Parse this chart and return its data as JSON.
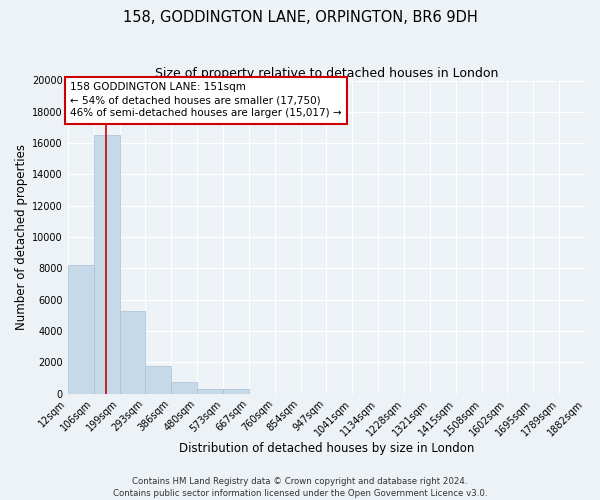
{
  "title": "158, GODDINGTON LANE, ORPINGTON, BR6 9DH",
  "subtitle": "Size of property relative to detached houses in London",
  "xlabel": "Distribution of detached houses by size in London",
  "ylabel": "Number of detached properties",
  "bar_values": [
    8200,
    16500,
    5300,
    1800,
    750,
    280,
    280,
    0,
    0,
    0,
    0,
    0,
    0,
    0,
    0,
    0,
    0,
    0,
    0,
    0
  ],
  "bar_labels": [
    "12sqm",
    "106sqm",
    "199sqm",
    "293sqm",
    "386sqm",
    "480sqm",
    "573sqm",
    "667sqm",
    "760sqm",
    "854sqm",
    "947sqm",
    "1041sqm",
    "1134sqm",
    "1228sqm",
    "1321sqm",
    "1415sqm",
    "1508sqm",
    "1602sqm",
    "1695sqm",
    "1789sqm",
    "1882sqm"
  ],
  "bar_color": "#c6d9e8",
  "bar_edge_color": "#aac0d4",
  "vline_color": "#cc0000",
  "annotation_text_line1": "158 GODDINGTON LANE: 151sqm",
  "annotation_text_line2": "← 54% of detached houses are smaller (17,750)",
  "annotation_text_line3": "46% of semi-detached houses are larger (15,017) →",
  "annotation_box_color": "#ffffff",
  "annotation_edge_color": "#cc0000",
  "ylim": [
    0,
    20000
  ],
  "yticks": [
    0,
    2000,
    4000,
    6000,
    8000,
    10000,
    12000,
    14000,
    16000,
    18000,
    20000
  ],
  "footer_line1": "Contains HM Land Registry data © Crown copyright and database right 2024.",
  "footer_line2": "Contains public sector information licensed under the Open Government Licence v3.0.",
  "background_color": "#edf2f7",
  "grid_color": "#ffffff",
  "title_fontsize": 10.5,
  "subtitle_fontsize": 9,
  "axis_label_fontsize": 8.5,
  "tick_fontsize": 7,
  "annotation_fontsize": 7.5,
  "footer_fontsize": 6.2
}
